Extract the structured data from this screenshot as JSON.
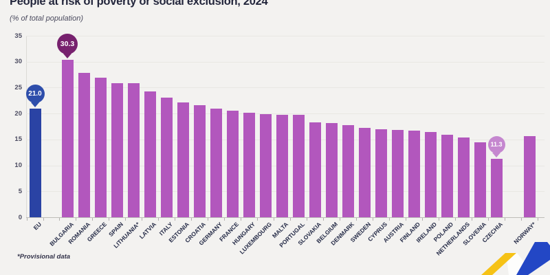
{
  "header": {
    "title": "People at risk of poverty or social exclusion, 2024",
    "subtitle": "(% of total population)"
  },
  "footnote": "*Provisional data",
  "chart_data": {
    "type": "bar",
    "title": "People at risk of poverty or social exclusion, 2024",
    "ylabel": "% of total population",
    "ylim": [
      0,
      35
    ],
    "yticks": [
      0,
      5,
      10,
      15,
      20,
      25,
      30,
      35
    ],
    "grid": true,
    "colors": {
      "country_bar": "#b257bd",
      "eu_bar": "#2a43a4",
      "eu_badge": "#2e4eab",
      "max_badge": "#77216e",
      "min_badge": "#c587cf"
    },
    "bars": [
      {
        "label": "EU",
        "value": 21.0,
        "role": "eu",
        "badge": {
          "text": "21.0",
          "color": "#2e4eab"
        }
      },
      {
        "label": "BULGARIA",
        "value": 30.3,
        "gap_before": true,
        "badge": {
          "text": "30.3",
          "color": "#77216e"
        }
      },
      {
        "label": "ROMANIA",
        "value": 27.9
      },
      {
        "label": "GREECE",
        "value": 26.9
      },
      {
        "label": "SPAIN",
        "value": 25.8
      },
      {
        "label": "LITHUANIA*",
        "value": 25.8
      },
      {
        "label": "LATVIA",
        "value": 24.3
      },
      {
        "label": "ITALY",
        "value": 23.1
      },
      {
        "label": "ESTONIA",
        "value": 22.1
      },
      {
        "label": "CROATIA",
        "value": 21.6
      },
      {
        "label": "GERMANY",
        "value": 21.0
      },
      {
        "label": "FRANCE",
        "value": 20.5
      },
      {
        "label": "HUNGARY",
        "value": 20.2
      },
      {
        "label": "LUXEMBOURG",
        "value": 19.9
      },
      {
        "label": "MALTA",
        "value": 19.8
      },
      {
        "label": "PORTUGAL",
        "value": 19.7
      },
      {
        "label": "SLOVAKIA",
        "value": 18.3
      },
      {
        "label": "BELGIUM",
        "value": 18.2
      },
      {
        "label": "DENMARK",
        "value": 17.8
      },
      {
        "label": "SWEDEN",
        "value": 17.3
      },
      {
        "label": "CYPRUS",
        "value": 17.0
      },
      {
        "label": "AUSTRIA",
        "value": 16.8
      },
      {
        "label": "FINLAND",
        "value": 16.7
      },
      {
        "label": "IRELAND",
        "value": 16.5
      },
      {
        "label": "POLAND",
        "value": 15.9
      },
      {
        "label": "NETHERLANDS",
        "value": 15.4
      },
      {
        "label": "SLOVENIA",
        "value": 14.4
      },
      {
        "label": "CZECHIA",
        "value": 11.3,
        "badge": {
          "text": "11.3",
          "color": "#c587cf"
        }
      },
      {
        "label": "NORWAY*",
        "value": 15.6,
        "gap_before": true
      }
    ]
  },
  "logo": {
    "name": "statistics-trend-logo",
    "yellow": "#f6c216",
    "blue": "#2347c5",
    "white": "#fdfdfc"
  }
}
